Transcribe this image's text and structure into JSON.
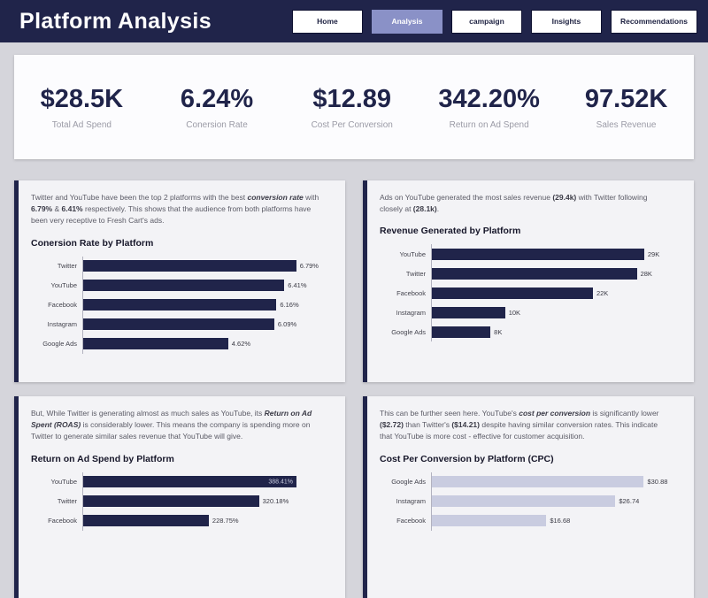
{
  "header": {
    "title": "Platform Analysis"
  },
  "nav": {
    "active_index": 1,
    "items": [
      {
        "label": "Home"
      },
      {
        "label": "Analysis"
      },
      {
        "label": "campaign"
      },
      {
        "label": "Insights"
      },
      {
        "label": "Recommendations"
      }
    ]
  },
  "kpis": [
    {
      "value": "$28.5K",
      "label": "Total Ad Spend"
    },
    {
      "value": "6.24%",
      "label": "Conersion Rate"
    },
    {
      "value": "$12.89",
      "label": "Cost Per Conversion"
    },
    {
      "value": "342.20%",
      "label": "Return on Ad Spend"
    },
    {
      "value": "97.52K",
      "label": "Sales Revenue"
    }
  ],
  "colors": {
    "navy": "#20244a",
    "active_nav": "#8a91c7",
    "light_bar": "#c9cce0",
    "page_background": "#d5d5db",
    "panel_background": "#f3f3f6"
  },
  "panels": [
    {
      "paragraph": [
        {
          "t": "Twitter and YouTube have been the top 2 platforms with the best "
        },
        {
          "t": "conversion rate",
          "b": 1,
          "i": 1
        },
        {
          "t": " with "
        },
        {
          "t": "6.79%",
          "b": 1
        },
        {
          "t": " & "
        },
        {
          "t": "6.41%",
          "b": 1
        },
        {
          "t": " respectively. This shows that the audience from both platforms have been very receptive to Fresh Cart's ads."
        }
      ]
    },
    {
      "paragraph": [
        {
          "t": "Ads on YouTube generated the most sales revenue "
        },
        {
          "t": "(29.4k)",
          "b": 1
        },
        {
          "t": " with Twitter following closely at "
        },
        {
          "t": "(28.1k)",
          "b": 1
        },
        {
          "t": "."
        }
      ]
    },
    {
      "paragraph": [
        {
          "t": "But, While Twitter is generating almost as much sales as YouTube, its "
        },
        {
          "t": "Return on Ad Spent (ROAS)",
          "b": 1,
          "i": 1
        },
        {
          "t": " is considerably lower. This means the company is spending more on Twitter to generate similar sales revenue that YouTube will give."
        }
      ]
    },
    {
      "paragraph": [
        {
          "t": "This can be further seen here. YouTube's "
        },
        {
          "t": "cost per conversion",
          "b": 1,
          "i": 1
        },
        {
          "t": " is significantly lower "
        },
        {
          "t": "($2.72)",
          "b": 1
        },
        {
          "t": " than Twitter's "
        },
        {
          "t": "($14.21)",
          "b": 1
        },
        {
          "t": " despite having similar conversion rates. This indicate that YouTube is more cost - effective for customer acquisition."
        }
      ]
    }
  ],
  "chart_data": [
    {
      "type": "bar",
      "orientation": "horizontal",
      "title": "Conersion Rate by Platform",
      "categories": [
        "Twitter",
        "YouTube",
        "Facebook",
        "Instagram",
        "Google Ads"
      ],
      "values": [
        6.79,
        6.41,
        6.16,
        6.09,
        4.62
      ],
      "value_labels": [
        "6.79%",
        "6.41%",
        "6.16%",
        "6.09%",
        "4.62%"
      ],
      "xlim": [
        0,
        7
      ],
      "bar_color": "#20244a",
      "value_inside": []
    },
    {
      "type": "bar",
      "orientation": "horizontal",
      "title": "Revenue Generated by Platform",
      "categories": [
        "YouTube",
        "Twitter",
        "Facebook",
        "Instagram",
        "Google Ads"
      ],
      "values": [
        29,
        28,
        22,
        10,
        8
      ],
      "value_labels": [
        "29K",
        "28K",
        "22K",
        "10K",
        "8K"
      ],
      "xlim": [
        0,
        30
      ],
      "bar_color": "#20244a",
      "value_inside": []
    },
    {
      "type": "bar",
      "orientation": "horizontal",
      "title": "Return on Ad Spend by Platform",
      "categories": [
        "YouTube",
        "Twitter",
        "Facebook"
      ],
      "values": [
        388.41,
        320.18,
        228.75
      ],
      "value_labels": [
        "388.41%",
        "320.18%",
        "228.75%"
      ],
      "xlim": [
        0,
        400
      ],
      "bar_color": "#20244a",
      "value_inside": [
        0
      ]
    },
    {
      "type": "bar",
      "orientation": "horizontal",
      "title": "Cost Per Conversion by Platform (CPC)",
      "categories": [
        "Google Ads",
        "Instagram",
        "Facebook"
      ],
      "values": [
        30.88,
        26.74,
        16.68
      ],
      "value_labels": [
        "$30.88",
        "$26.74",
        "$16.68"
      ],
      "xlim": [
        0,
        32
      ],
      "bar_color": "#c9cce0",
      "value_inside": []
    }
  ]
}
